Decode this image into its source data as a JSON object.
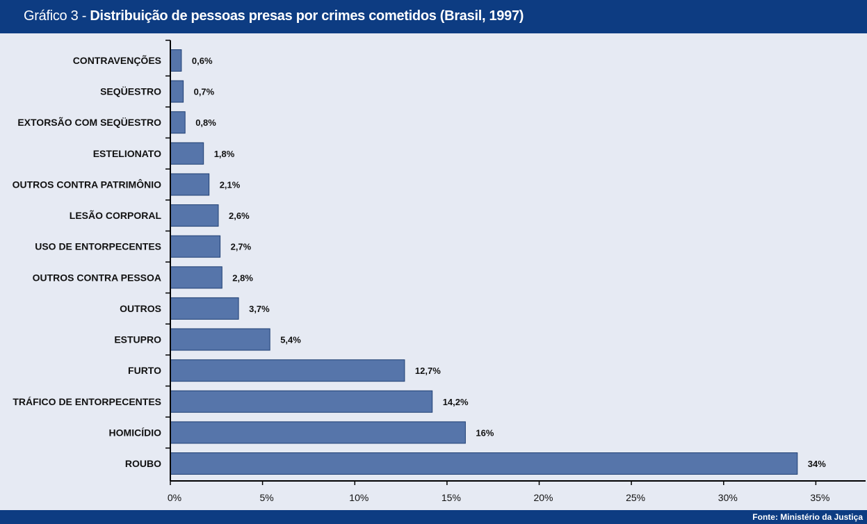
{
  "header": {
    "prefix": "Gráfico 3 - ",
    "title": "Distribuição de pessoas presas por crimes cometidos (Brasil, 1997)"
  },
  "footer": {
    "source": "Fonte: Ministério da Justiça"
  },
  "colors": {
    "header_bg": "#0d3c82",
    "plot_bg": "#e6eaf3",
    "bar_fill": "#5675aa",
    "bar_stroke": "#1f3f73"
  },
  "chart_data": {
    "type": "bar",
    "orientation": "horizontal",
    "title": "Distribuição de pessoas presas por crimes cometidos (Brasil, 1997)",
    "categories": [
      "CONTRAVENÇÕES",
      "SEQÜESTRO",
      "EXTORSÃO COM SEQÜESTRO",
      "ESTELIONATO",
      "OUTROS CONTRA PATRIMÔNIO",
      "LESÃO CORPORAL",
      "USO DE ENTORPECENTES",
      "OUTROS CONTRA PESSOA",
      "OUTROS",
      "ESTUPRO",
      "FURTO",
      "TRÁFICO DE ENTORPECENTES",
      "HOMICÍDIO",
      "ROUBO"
    ],
    "values": [
      0.6,
      0.7,
      0.8,
      1.8,
      2.1,
      2.6,
      2.7,
      2.8,
      3.7,
      5.4,
      12.7,
      14.2,
      16,
      34
    ],
    "value_labels": [
      "0,6%",
      "0,7%",
      "0,8%",
      "1,8%",
      "2,1%",
      "2,6%",
      "2,7%",
      "2,8%",
      "3,7%",
      "5,4%",
      "12,7%",
      "14,2%",
      "16%",
      "34%"
    ],
    "xlim": [
      0,
      36.5
    ],
    "x_ticks": [
      0,
      5,
      10,
      15,
      20,
      25,
      30,
      35
    ],
    "x_tick_labels": [
      "0%",
      "5%",
      "10%",
      "15%",
      "20%",
      "25%",
      "30%",
      "35%"
    ],
    "grid": false,
    "legend": "none"
  }
}
